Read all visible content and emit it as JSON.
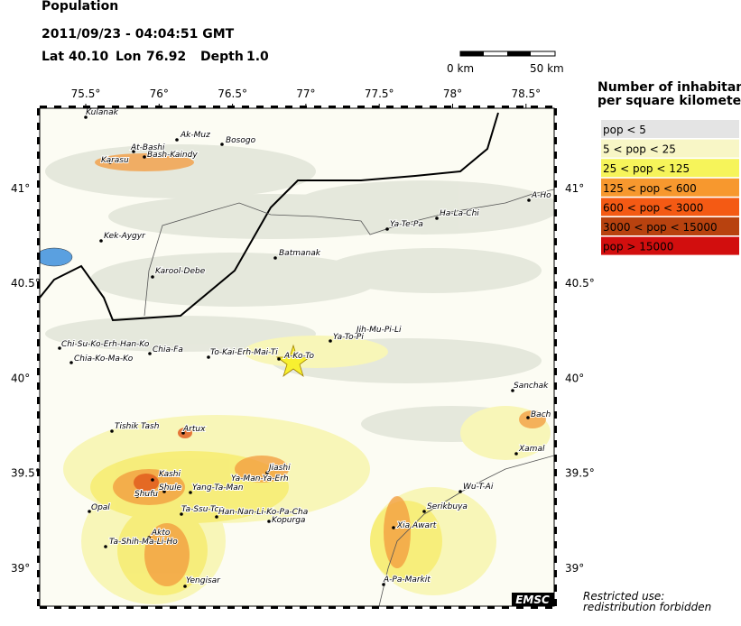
{
  "header": {
    "title": "Population",
    "datetime": "2011/09/23 - 04:04:51 GMT",
    "lat_label": "Lat",
    "lat": "40.10",
    "lon_label": "Lon",
    "lon": "76.92",
    "depth_label": "Depth",
    "depth": "1.0"
  },
  "scale": {
    "start": "0 km",
    "end": "50 km"
  },
  "axes": {
    "lon": [
      "75.5°",
      "76°",
      "76.5°",
      "77°",
      "77.5°",
      "78°",
      "78.5°"
    ],
    "lat": [
      "41°",
      "40.5°",
      "40°",
      "39.5°",
      "39°"
    ]
  },
  "legend": {
    "title": [
      "Number of inhabitants",
      "per square kilometer"
    ],
    "items": [
      {
        "label": "pop < 5",
        "color": "#e4e4e4"
      },
      {
        "label": "5 < pop < 25",
        "color": "#f8f6c6"
      },
      {
        "label": "25 < pop < 125",
        "color": "#f6f45a"
      },
      {
        "label": "125 < pop < 600",
        "color": "#f7982e"
      },
      {
        "label": "600 < pop < 3000",
        "color": "#f45a14"
      },
      {
        "label": "3000 < pop < 15000",
        "color": "#b8420f"
      },
      {
        "label": "pop > 15000",
        "color": "#d20e0e"
      }
    ]
  },
  "places": [
    {
      "name": "Kulanak"
    },
    {
      "name": "Ak-Muz"
    },
    {
      "name": "At-Bashi"
    },
    {
      "name": "Bash-Kaindy"
    },
    {
      "name": "Karasu"
    },
    {
      "name": "Bosogo"
    },
    {
      "name": "A-Ho"
    },
    {
      "name": "Ya-Te-Pa"
    },
    {
      "name": "Ha-La-Chi"
    },
    {
      "name": "Kek-Aygyr"
    },
    {
      "name": "Batmanak"
    },
    {
      "name": "Karool-Debe"
    },
    {
      "name": "Jih-Mu-Pi-Li"
    },
    {
      "name": "Ya-To-Pi"
    },
    {
      "name": "Chi-Su-Ko-Erh-Han-Ko"
    },
    {
      "name": "Chia-Fa"
    },
    {
      "name": "To-Kai-Erh-Mai-Ti"
    },
    {
      "name": "A-Ko-To"
    },
    {
      "name": "Chia-Ko-Ma-Ko"
    },
    {
      "name": "Sanchak"
    },
    {
      "name": "Bach"
    },
    {
      "name": "Tishik Tash"
    },
    {
      "name": "Artux"
    },
    {
      "name": "Xamal"
    },
    {
      "name": "Jiashi"
    },
    {
      "name": "Kashi"
    },
    {
      "name": "Ya-Man-Ya-Erh"
    },
    {
      "name": "Wu-T-Ai"
    },
    {
      "name": "Shule"
    },
    {
      "name": "Yang-Ta-Man"
    },
    {
      "name": "Shufu"
    },
    {
      "name": "Serikbuya"
    },
    {
      "name": "Opal"
    },
    {
      "name": "Ta-Ssu-Tcn"
    },
    {
      "name": "Han-Nan-Li-Ko-Pa-Cha"
    },
    {
      "name": "Kopurga"
    },
    {
      "name": "Xia Awart"
    },
    {
      "name": "Akto"
    },
    {
      "name": "Ta-Shih-Ma-Li-Ho"
    },
    {
      "name": "A-Pa-Markit"
    },
    {
      "name": "Yengisar"
    }
  ],
  "logo": "EMSC",
  "notice": [
    "Restricted use:",
    "redistribution forbidden"
  ]
}
